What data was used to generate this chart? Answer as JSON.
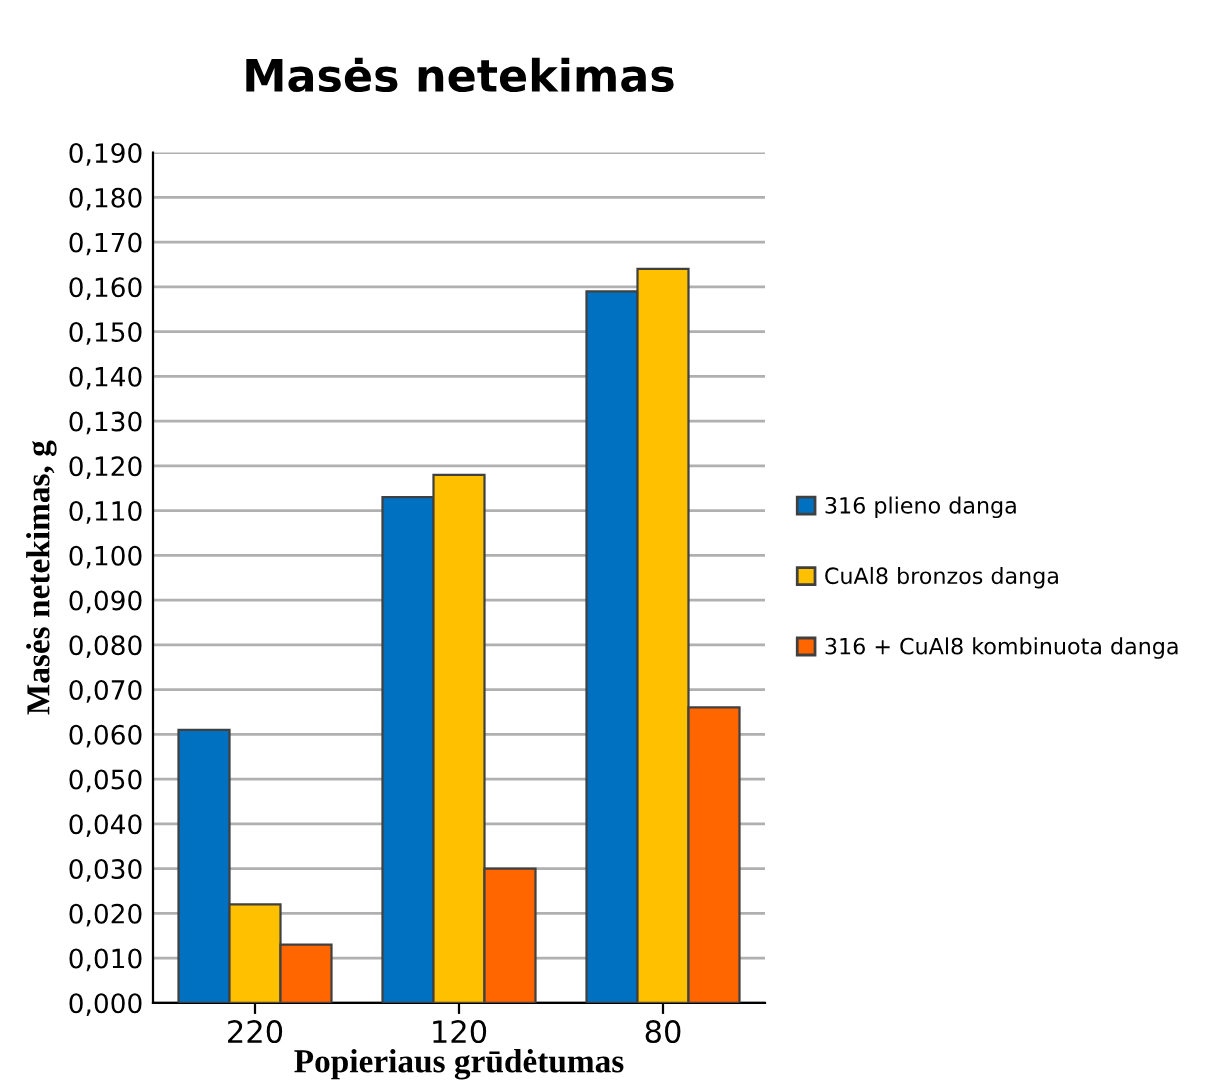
{
  "chart_data": {
    "type": "bar",
    "title": "Masės netekimas",
    "xlabel": "Popieriaus grūdėtumas",
    "ylabel": "Masės netekimas, g",
    "categories": [
      "220",
      "120",
      "80"
    ],
    "series": [
      {
        "name": "316 plieno danga",
        "color": "#0070c0",
        "values": [
          0.061,
          0.113,
          0.159
        ]
      },
      {
        "name": "CuAl8 bronzos danga",
        "color": "#ffc000",
        "values": [
          0.022,
          0.118,
          0.164
        ]
      },
      {
        "name": "316 + CuAl8 kombinuota danga",
        "color": "#ff6600",
        "values": [
          0.013,
          0.03,
          0.066
        ]
      }
    ],
    "ylim": [
      0,
      0.19
    ],
    "yticks": [
      {
        "value": 0,
        "label": "0,000"
      },
      {
        "value": 0.01,
        "label": "0,010"
      },
      {
        "value": 0.02,
        "label": "0,020"
      },
      {
        "value": 0.03,
        "label": "0,030"
      },
      {
        "value": 0.04,
        "label": "0,040"
      },
      {
        "value": 0.05,
        "label": "0,050"
      },
      {
        "value": 0.06,
        "label": "0,060"
      },
      {
        "value": 0.07,
        "label": "0,070"
      },
      {
        "value": 0.08,
        "label": "0,080"
      },
      {
        "value": 0.09,
        "label": "0,090"
      },
      {
        "value": 0.1,
        "label": "0,100"
      },
      {
        "value": 0.11,
        "label": "0,110"
      },
      {
        "value": 0.12,
        "label": "0,120"
      },
      {
        "value": 0.13,
        "label": "0,130"
      },
      {
        "value": 0.14,
        "label": "0,140"
      },
      {
        "value": 0.15,
        "label": "0,150"
      },
      {
        "value": 0.16,
        "label": "0,160"
      },
      {
        "value": 0.17,
        "label": "0,170"
      },
      {
        "value": 0.18,
        "label": "0,180"
      },
      {
        "value": 0.19,
        "label": "0,190"
      }
    ],
    "grid": "y",
    "legend": "right"
  }
}
